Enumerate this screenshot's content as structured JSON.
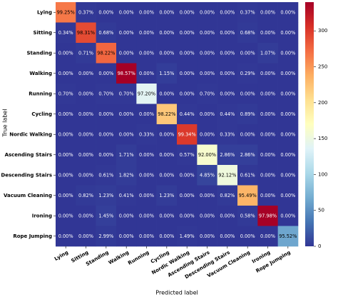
{
  "chart_data": {
    "type": "heatmap",
    "xlabel": "Predicted label",
    "ylabel": "True label",
    "categories": [
      "Lying",
      "Sitting",
      "Standing",
      "Walking",
      "Running",
      "Cycling",
      "Nordic Walking",
      "Ascending Stairs",
      "Descending Stairs",
      "Vacuum Cleaning",
      "Ironing",
      "Rope Jumping"
    ],
    "colormap": "RdYlBu_r",
    "clim": [
      0,
      340
    ],
    "cticks": [
      0,
      50,
      100,
      150,
      200,
      250,
      300
    ],
    "counts": [
      [
        266,
        1,
        0,
        0,
        0,
        0,
        0,
        0,
        0,
        1,
        0,
        0
      ],
      [
        1,
        291,
        2,
        0,
        0,
        0,
        0,
        0,
        0,
        2,
        0,
        0
      ],
      [
        0,
        2,
        276,
        0,
        0,
        0,
        0,
        0,
        0,
        0,
        3,
        0
      ],
      [
        0,
        0,
        0,
        344,
        0,
        4,
        0,
        0,
        0,
        1,
        0,
        0
      ],
      [
        1,
        0,
        1,
        1,
        139,
        0,
        0,
        1,
        0,
        0,
        0,
        0
      ],
      [
        0,
        0,
        0,
        0,
        0,
        221,
        1,
        0,
        1,
        2,
        0,
        0
      ],
      [
        0,
        0,
        0,
        0,
        1,
        0,
        301,
        0,
        1,
        0,
        0,
        0
      ],
      [
        0,
        0,
        0,
        3,
        0,
        0,
        1,
        161,
        5,
        5,
        0,
        0
      ],
      [
        0,
        0,
        1,
        3,
        0,
        0,
        0,
        8,
        152,
        1,
        0,
        0
      ],
      [
        0,
        2,
        3,
        1,
        0,
        3,
        0,
        0,
        2,
        233,
        0,
        0
      ],
      [
        0,
        0,
        5,
        0,
        0,
        0,
        0,
        0,
        0,
        2,
        339,
        0
      ],
      [
        0,
        0,
        2,
        0,
        0,
        0,
        1,
        0,
        0,
        0,
        0,
        64
      ]
    ],
    "values": [
      [
        99.25,
        0.37,
        0,
        0,
        0,
        0,
        0,
        0,
        0,
        0.37,
        0,
        0
      ],
      [
        0.34,
        98.31,
        0.68,
        0,
        0,
        0,
        0,
        0,
        0,
        0.68,
        0,
        0
      ],
      [
        0,
        0.71,
        98.22,
        0,
        0,
        0,
        0,
        0,
        0,
        0,
        1.07,
        0
      ],
      [
        0,
        0,
        0,
        98.57,
        0,
        1.15,
        0,
        0,
        0,
        0.29,
        0,
        0
      ],
      [
        0.7,
        0,
        0.7,
        0.7,
        97.2,
        0,
        0,
        0.7,
        0,
        0,
        0,
        0
      ],
      [
        0,
        0,
        0,
        0,
        0,
        98.22,
        0.44,
        0,
        0.44,
        0.89,
        0,
        0
      ],
      [
        0,
        0,
        0,
        0,
        0.33,
        0,
        99.34,
        0,
        0.33,
        0,
        0,
        0
      ],
      [
        0,
        0,
        0,
        1.71,
        0,
        0,
        0.57,
        92,
        2.86,
        2.86,
        0,
        0
      ],
      [
        0,
        0,
        0.61,
        1.82,
        0,
        0,
        0,
        4.85,
        92.12,
        0.61,
        0,
        0
      ],
      [
        0,
        0.82,
        1.23,
        0.41,
        0,
        1.23,
        0,
        0,
        0.82,
        95.49,
        0,
        0
      ],
      [
        0,
        0,
        1.45,
        0,
        0,
        0,
        0,
        0,
        0,
        0.58,
        97.98,
        0
      ],
      [
        0,
        0,
        2.99,
        0,
        0,
        0,
        1.49,
        0,
        0,
        0,
        0,
        95.52
      ]
    ],
    "value_labels": [
      [
        "99.25%",
        "0.37%",
        "0.00%",
        "0.00%",
        "0.00%",
        "0.00%",
        "0.00%",
        "0.00%",
        "0.00%",
        "0.37%",
        "0.00%",
        "0.00%"
      ],
      [
        "0.34%",
        "98.31%",
        "0.68%",
        "0.00%",
        "0.00%",
        "0.00%",
        "0.00%",
        "0.00%",
        "0.00%",
        "0.68%",
        "0.00%",
        "0.00%"
      ],
      [
        "0.00%",
        "0.71%",
        "98.22%",
        "0.00%",
        "0.00%",
        "0.00%",
        "0.00%",
        "0.00%",
        "0.00%",
        "0.00%",
        "1.07%",
        "0.00%"
      ],
      [
        "0.00%",
        "0.00%",
        "0.00%",
        "98.57%",
        "0.00%",
        "1.15%",
        "0.00%",
        "0.00%",
        "0.00%",
        "0.29%",
        "0.00%",
        "0.00%"
      ],
      [
        "0.70%",
        "0.00%",
        "0.70%",
        "0.70%",
        "97.20%",
        "0.00%",
        "0.00%",
        "0.70%",
        "0.00%",
        "0.00%",
        "0.00%",
        "0.00%"
      ],
      [
        "0.00%",
        "0.00%",
        "0.00%",
        "0.00%",
        "0.00%",
        "98.22%",
        "0.44%",
        "0.00%",
        "0.44%",
        "0.89%",
        "0.00%",
        "0.00%"
      ],
      [
        "0.00%",
        "0.00%",
        "0.00%",
        "0.00%",
        "0.33%",
        "0.00%",
        "99.34%",
        "0.00%",
        "0.33%",
        "0.00%",
        "0.00%",
        "0.00%"
      ],
      [
        "0.00%",
        "0.00%",
        "0.00%",
        "1.71%",
        "0.00%",
        "0.00%",
        "0.57%",
        "92.00%",
        "2.86%",
        "2.86%",
        "0.00%",
        "0.00%"
      ],
      [
        "0.00%",
        "0.00%",
        "0.61%",
        "1.82%",
        "0.00%",
        "0.00%",
        "0.00%",
        "4.85%",
        "92.12%",
        "0.61%",
        "0.00%",
        "0.00%"
      ],
      [
        "0.00%",
        "0.82%",
        "1.23%",
        "0.41%",
        "0.00%",
        "1.23%",
        "0.00%",
        "0.00%",
        "0.82%",
        "95.49%",
        "0.00%",
        "0.00%"
      ],
      [
        "0.00%",
        "0.00%",
        "1.45%",
        "0.00%",
        "0.00%",
        "0.00%",
        "0.00%",
        "0.00%",
        "0.00%",
        "0.58%",
        "97.98%",
        "0.00%"
      ],
      [
        "0.00%",
        "0.00%",
        "2.99%",
        "0.00%",
        "0.00%",
        "0.00%",
        "1.49%",
        "0.00%",
        "0.00%",
        "0.00%",
        "0.00%",
        "95.52%"
      ]
    ]
  }
}
